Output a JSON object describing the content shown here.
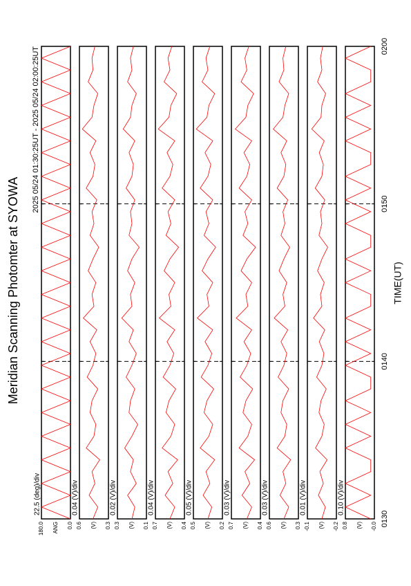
{
  "chart_data": {
    "type": "line",
    "title": "Meridian Scanning Photomter at SYOWA",
    "subtitle": "2025 05/24 01:30:25UT - 2025 05/24 02:00:25UT",
    "xlabel": "TIME(UT)",
    "xlim": [
      90,
      120
    ],
    "xticks": [
      {
        "value": 90,
        "label": "0130"
      },
      {
        "value": 100,
        "label": "0140"
      },
      {
        "value": 110,
        "label": "0150"
      },
      {
        "value": 120,
        "label": "0200"
      }
    ],
    "grid": true,
    "x": [
      90,
      90.75,
      91.5,
      92.25,
      93,
      93.75,
      94.5,
      95.25,
      96,
      96.75,
      97.5,
      98.25,
      99,
      99.75,
      100.5,
      101.25,
      102,
      102.75,
      103.5,
      104.25,
      105,
      105.75,
      106.5,
      107.25,
      108,
      108.75,
      109.5,
      110.25,
      111,
      111.75,
      112.5,
      113.25,
      114,
      114.75,
      115.5,
      116.25,
      117,
      117.75,
      118.5,
      119.25,
      120
    ],
    "panels": [
      {
        "scale_label": "22.5 (deg)/div",
        "ylabel": "ANG",
        "ylim": [
          0,
          180
        ],
        "yticks": [
          {
            "value": 0,
            "label": "0.0"
          },
          {
            "value": 180,
            "label": "180.0"
          }
        ],
        "color": "#ff0000",
        "values": [
          0,
          180,
          0,
          180,
          0,
          180,
          0,
          180,
          0,
          180,
          0,
          180,
          0,
          180,
          0,
          180,
          0,
          180,
          0,
          180,
          0,
          180,
          0,
          180,
          0,
          180,
          0,
          180,
          0,
          180,
          0,
          180,
          0,
          180,
          0,
          180,
          0,
          180,
          0,
          180,
          0
        ]
      },
      {
        "scale_label": "0.04 (V)/div",
        "ylabel": "(V)",
        "ylim": [
          0.3,
          0.6
        ],
        "yticks": [
          0.3,
          0.6
        ],
        "color": "#ff0000",
        "values": [
          0.46,
          0.41,
          0.5,
          0.44,
          0.47,
          0.39,
          0.53,
          0.45,
          0.43,
          0.49,
          0.47,
          0.41,
          0.52,
          0.46,
          0.43,
          0.49,
          0.42,
          0.56,
          0.45,
          0.47,
          0.43,
          0.51,
          0.46,
          0.4,
          0.49,
          0.45,
          0.47,
          0.42,
          0.53,
          0.46,
          0.44,
          0.49,
          0.43,
          0.57,
          0.47,
          0.45,
          0.41,
          0.51,
          0.46,
          0.47,
          0.44
        ]
      },
      {
        "scale_label": "0.02 (V)/div",
        "ylabel": "(V)",
        "ylim": [
          0.1,
          0.3
        ],
        "yticks": [
          0.1,
          0.3
        ],
        "color": "#ff0000",
        "values": [
          0.2,
          0.18,
          0.23,
          0.17,
          0.21,
          0.19,
          0.25,
          0.2,
          0.16,
          0.22,
          0.21,
          0.18,
          0.24,
          0.2,
          0.17,
          0.22,
          0.19,
          0.27,
          0.2,
          0.21,
          0.18,
          0.23,
          0.2,
          0.15,
          0.22,
          0.2,
          0.21,
          0.18,
          0.24,
          0.2,
          0.19,
          0.22,
          0.18,
          0.26,
          0.21,
          0.2,
          0.17,
          0.23,
          0.2,
          0.21,
          0.19
        ]
      },
      {
        "scale_label": "0.04 (V)/div",
        "ylabel": "(V)",
        "ylim": [
          0.4,
          0.7
        ],
        "yticks": [
          0.4,
          0.7
        ],
        "color": "#ff0000",
        "values": [
          0.55,
          0.5,
          0.6,
          0.52,
          0.57,
          0.47,
          0.63,
          0.54,
          0.5,
          0.59,
          0.56,
          0.49,
          0.62,
          0.55,
          0.51,
          0.58,
          0.5,
          0.66,
          0.54,
          0.56,
          0.5,
          0.61,
          0.55,
          0.46,
          0.59,
          0.54,
          0.57,
          0.5,
          0.63,
          0.55,
          0.52,
          0.58,
          0.5,
          0.67,
          0.56,
          0.54,
          0.48,
          0.61,
          0.55,
          0.57,
          0.53
        ]
      },
      {
        "scale_label": "0.05 (V)/div",
        "ylabel": "(V)",
        "ylim": [
          0.2,
          0.5
        ],
        "yticks": [
          0.2,
          0.5
        ],
        "color": "#ff0000",
        "values": [
          0.35,
          0.31,
          0.4,
          0.33,
          0.37,
          0.28,
          0.43,
          0.34,
          0.3,
          0.39,
          0.36,
          0.29,
          0.42,
          0.35,
          0.31,
          0.38,
          0.3,
          0.46,
          0.34,
          0.36,
          0.3,
          0.41,
          0.35,
          0.27,
          0.39,
          0.34,
          0.37,
          0.3,
          0.43,
          0.35,
          0.32,
          0.38,
          0.3,
          0.47,
          0.36,
          0.34,
          0.28,
          0.41,
          0.35,
          0.37,
          0.33
        ]
      },
      {
        "scale_label": "0.03 (V)/div",
        "ylabel": "(V)",
        "ylim": [
          0.4,
          0.7
        ],
        "yticks": [
          0.4,
          0.7
        ],
        "color": "#ff0000",
        "values": [
          0.54,
          0.49,
          0.59,
          0.51,
          0.56,
          0.46,
          0.62,
          0.53,
          0.49,
          0.58,
          0.55,
          0.48,
          0.61,
          0.54,
          0.5,
          0.57,
          0.49,
          0.65,
          0.53,
          0.55,
          0.49,
          0.6,
          0.54,
          0.45,
          0.58,
          0.53,
          0.56,
          0.49,
          0.62,
          0.54,
          0.51,
          0.57,
          0.49,
          0.66,
          0.55,
          0.53,
          0.47,
          0.6,
          0.54,
          0.56,
          0.52
        ]
      },
      {
        "scale_label": "0.03 (V)/div",
        "ylabel": "(V)",
        "ylim": [
          0.3,
          0.6
        ],
        "yticks": [
          0.3,
          0.6
        ],
        "color": "#ff0000",
        "values": [
          0.45,
          0.4,
          0.49,
          0.43,
          0.46,
          0.38,
          0.52,
          0.44,
          0.42,
          0.48,
          0.46,
          0.4,
          0.51,
          0.45,
          0.42,
          0.48,
          0.41,
          0.55,
          0.44,
          0.46,
          0.42,
          0.5,
          0.45,
          0.39,
          0.48,
          0.44,
          0.46,
          0.41,
          0.52,
          0.45,
          0.43,
          0.48,
          0.42,
          0.56,
          0.46,
          0.44,
          0.4,
          0.5,
          0.45,
          0.46,
          0.43
        ]
      },
      {
        "scale_label": "0.01 (V)/div",
        "ylabel": "(V)",
        "ylim": [
          -0.2,
          -0.1
        ],
        "yticks": [
          -0.2,
          -0.1
        ],
        "color": "#ff0000",
        "values": [
          -0.15,
          -0.162,
          -0.138,
          -0.155,
          -0.143,
          -0.168,
          -0.128,
          -0.15,
          -0.158,
          -0.14,
          -0.147,
          -0.165,
          -0.132,
          -0.15,
          -0.157,
          -0.141,
          -0.16,
          -0.121,
          -0.15,
          -0.145,
          -0.158,
          -0.135,
          -0.15,
          -0.17,
          -0.14,
          -0.15,
          -0.145,
          -0.16,
          -0.127,
          -0.15,
          -0.155,
          -0.141,
          -0.158,
          -0.115,
          -0.147,
          -0.15,
          -0.163,
          -0.135,
          -0.15,
          -0.145,
          -0.153
        ]
      },
      {
        "scale_label": "0.10 (V)/div",
        "ylabel": "(V)",
        "ylim": [
          0,
          0.8
        ],
        "yticks": [
          {
            "value": 0,
            "label": "-0.0"
          },
          0.8
        ],
        "color": "#ff0000",
        "values": [
          0.1,
          0.8,
          0.1,
          0.8,
          0.1,
          0.1,
          0.8,
          0.1,
          0.8,
          0.1,
          0.8,
          0.1,
          0.1,
          0.8,
          0.1,
          0.8,
          0.1,
          0.8,
          0.1,
          0.1,
          0.8,
          0.1,
          0.8,
          0.1,
          0.1,
          0.8,
          0.1,
          0.8,
          0.1,
          0.8,
          0.1,
          0.1,
          0.8,
          0.1,
          0.8,
          0.1,
          0.8,
          0.1,
          0.1,
          0.8,
          0.1
        ]
      }
    ]
  }
}
